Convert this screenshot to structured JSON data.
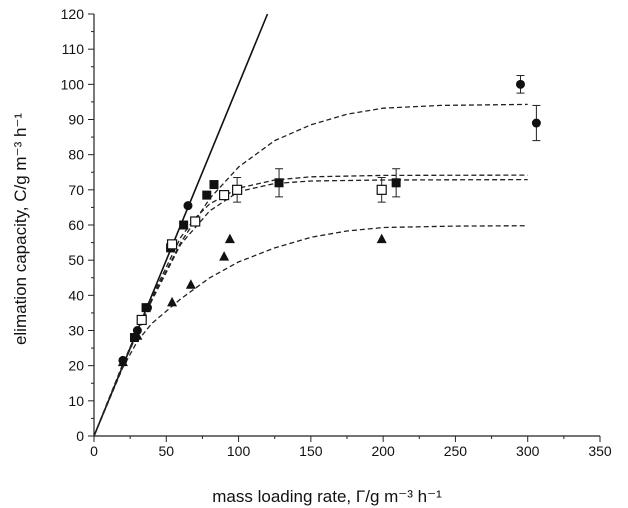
{
  "chart_data": {
    "type": "scatter",
    "title": "",
    "xlabel": "mass loading rate, Γ/g m⁻³ h⁻¹",
    "ylabel": "elimation capacity, C/g m⁻³ h⁻¹",
    "xlim": [
      0,
      350
    ],
    "ylim": [
      0,
      120
    ],
    "x_ticks": [
      "0",
      "50",
      "100",
      "150",
      "200",
      "250",
      "300",
      "350"
    ],
    "y_ticks": [
      "0",
      "10",
      "20",
      "30",
      "40",
      "50",
      "60",
      "70",
      "80",
      "90",
      "100",
      "110",
      "120"
    ],
    "grid": false,
    "legend": "none",
    "reference_line": {
      "style": "solid",
      "points": [
        [
          0,
          0
        ],
        [
          120,
          120
        ]
      ]
    },
    "series": [
      {
        "marker": "filled-circle",
        "points": [
          {
            "x": 20,
            "y": 21.5
          },
          {
            "x": 30,
            "y": 30
          },
          {
            "x": 37,
            "y": 36.5
          },
          {
            "x": 53,
            "y": 53.5
          },
          {
            "x": 65,
            "y": 65.5
          },
          {
            "x": 295,
            "y": 100,
            "err": 2.5
          },
          {
            "x": 306,
            "y": 89,
            "err": 5
          }
        ],
        "fit": [
          [
            0,
            0
          ],
          [
            20,
            20.5
          ],
          [
            40,
            39
          ],
          [
            60,
            55
          ],
          [
            80,
            67.5
          ],
          [
            100,
            76.5
          ],
          [
            125,
            84
          ],
          [
            150,
            88.5
          ],
          [
            175,
            91.5
          ],
          [
            200,
            93.2
          ],
          [
            240,
            94
          ],
          [
            300,
            94.3
          ]
        ]
      },
      {
        "marker": "filled-square",
        "points": [
          {
            "x": 28,
            "y": 28
          },
          {
            "x": 36,
            "y": 36.5
          },
          {
            "x": 53,
            "y": 53.5
          },
          {
            "x": 62,
            "y": 60
          },
          {
            "x": 78,
            "y": 68.5
          },
          {
            "x": 83,
            "y": 71.5
          },
          {
            "x": 128,
            "y": 72,
            "err": 4
          },
          {
            "x": 209,
            "y": 72,
            "err": 4
          }
        ],
        "fit": [
          [
            0,
            0
          ],
          [
            20,
            20.5
          ],
          [
            40,
            39.5
          ],
          [
            60,
            56.5
          ],
          [
            70,
            62
          ],
          [
            80,
            66
          ],
          [
            100,
            70.5
          ],
          [
            125,
            72.8
          ],
          [
            150,
            73.7
          ],
          [
            200,
            74.1
          ],
          [
            300,
            74.2
          ]
        ]
      },
      {
        "marker": "open-square",
        "points": [
          {
            "x": 33,
            "y": 33
          },
          {
            "x": 54,
            "y": 54.5
          },
          {
            "x": 70,
            "y": 61
          },
          {
            "x": 90,
            "y": 68.5
          },
          {
            "x": 99,
            "y": 70,
            "err": 3.5
          },
          {
            "x": 199,
            "y": 70,
            "err": 3.5
          }
        ],
        "fit": [
          [
            0,
            0
          ],
          [
            20,
            20
          ],
          [
            40,
            38.5
          ],
          [
            60,
            54.5
          ],
          [
            80,
            64
          ],
          [
            100,
            69.5
          ],
          [
            125,
            71.8
          ],
          [
            150,
            72.5
          ],
          [
            200,
            72.8
          ],
          [
            300,
            72.9
          ]
        ]
      },
      {
        "marker": "filled-triangle",
        "points": [
          {
            "x": 20,
            "y": 21
          },
          {
            "x": 30,
            "y": 28.5
          },
          {
            "x": 54,
            "y": 38
          },
          {
            "x": 67,
            "y": 43
          },
          {
            "x": 90,
            "y": 51
          },
          {
            "x": 94,
            "y": 56
          },
          {
            "x": 199,
            "y": 56
          }
        ],
        "fit": [
          [
            0,
            0
          ],
          [
            20,
            19.5
          ],
          [
            30,
            27
          ],
          [
            40,
            32
          ],
          [
            60,
            39
          ],
          [
            80,
            45
          ],
          [
            100,
            49.5
          ],
          [
            125,
            53.5
          ],
          [
            150,
            56.5
          ],
          [
            175,
            58.3
          ],
          [
            200,
            59.3
          ],
          [
            250,
            59.7
          ],
          [
            300,
            59.8
          ]
        ]
      }
    ]
  }
}
